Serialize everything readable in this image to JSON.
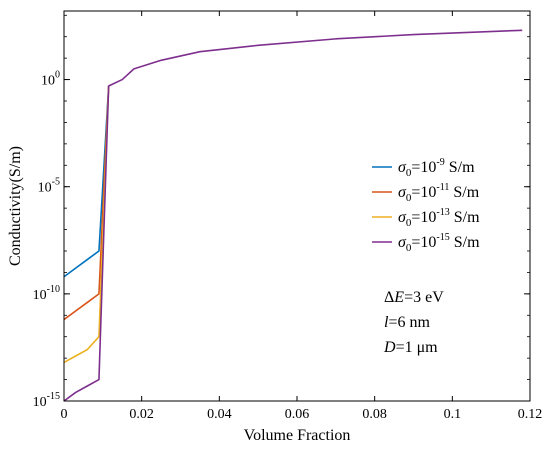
{
  "chart_data": {
    "type": "line",
    "xlabel": "Volume Fraction",
    "ylabel": "Conductivity(S/m)",
    "x_ticks": [
      0,
      0.02,
      0.04,
      0.06,
      0.08,
      0.1,
      0.12
    ],
    "x_tick_labels": [
      "0",
      "0.02",
      "0.04",
      "0.06",
      "0.08",
      "0.1",
      "0.12"
    ],
    "xlim": [
      0,
      0.12
    ],
    "y_scale": "log",
    "y_ticks": [
      {
        "base": "10",
        "exp": "0"
      },
      {
        "base": "10",
        "exp": "-5"
      },
      {
        "base": "10",
        "exp": "-10"
      },
      {
        "base": "10",
        "exp": "-15"
      }
    ],
    "ylim_log10": [
      -15,
      3.2
    ],
    "grid": false,
    "legend_position": "center-right",
    "series": [
      {
        "name": "σ0=10-9 S/m",
        "legend": {
          "symbol": "σ",
          "sub": "0",
          "mid": "=10",
          "sup": "-9",
          "unit": " S/m"
        },
        "color": "#0072BD",
        "x": [
          0,
          0.003,
          0.006,
          0.009,
          0.0115
        ],
        "log10_y": [
          -9.2,
          -8.8,
          -8.4,
          -8.0,
          -0.3
        ]
      },
      {
        "name": "σ0=10-11 S/m",
        "legend": {
          "symbol": "σ",
          "sub": "0",
          "mid": "=10",
          "sup": "-11",
          "unit": " S/m"
        },
        "color": "#D95319",
        "x": [
          0,
          0.003,
          0.006,
          0.009,
          0.0115
        ],
        "log10_y": [
          -11.2,
          -10.8,
          -10.4,
          -10.0,
          -0.3
        ]
      },
      {
        "name": "σ0=10-13 S/m",
        "legend": {
          "symbol": "σ",
          "sub": "0",
          "mid": "=10",
          "sup": "-13",
          "unit": " S/m"
        },
        "color": "#EDB120",
        "x": [
          0,
          0.003,
          0.006,
          0.009,
          0.0115
        ],
        "log10_y": [
          -13.2,
          -12.9,
          -12.6,
          -12.0,
          -0.3
        ]
      },
      {
        "name": "σ0=10-15 S/m",
        "legend": {
          "symbol": "σ",
          "sub": "0",
          "mid": "=10",
          "sup": "-15",
          "unit": " S/m"
        },
        "color": "#7E2F8E",
        "x": [
          0,
          0.003,
          0.006,
          0.009,
          0.0115,
          0.015,
          0.018,
          0.025,
          0.035,
          0.05,
          0.07,
          0.09,
          0.118
        ],
        "log10_y": [
          -15.0,
          -14.6,
          -14.3,
          -14.0,
          -0.3,
          0.0,
          0.5,
          0.9,
          1.3,
          1.6,
          1.9,
          2.1,
          2.3
        ]
      }
    ],
    "annotations": [
      {
        "prefix": "Δ",
        "italic": "E",
        "rest": "=3 eV"
      },
      {
        "prefix": "",
        "italic": "l",
        "rest": "=6 nm"
      },
      {
        "prefix": "",
        "italic": "D",
        "rest": "=1 μm"
      }
    ]
  }
}
